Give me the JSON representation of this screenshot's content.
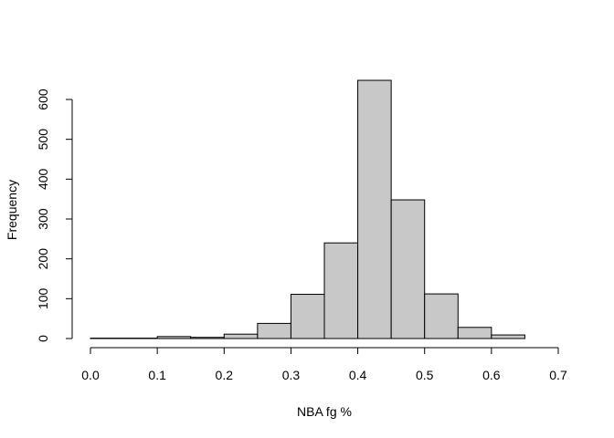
{
  "chart_data": {
    "type": "bar",
    "subtype": "histogram",
    "xlabel": "NBA fg %",
    "ylabel": "Frequency",
    "bin_edges": [
      0.0,
      0.05,
      0.1,
      0.15,
      0.2,
      0.25,
      0.3,
      0.35,
      0.4,
      0.45,
      0.5,
      0.55,
      0.6,
      0.65
    ],
    "values": [
      1,
      1,
      5,
      3,
      11,
      38,
      111,
      240,
      648,
      348,
      112,
      28,
      9
    ],
    "xlim": [
      0.0,
      0.7
    ],
    "ylim": [
      0,
      650
    ],
    "x_ticks": [
      "0.0",
      "0.1",
      "0.2",
      "0.3",
      "0.4",
      "0.5",
      "0.6",
      "0.7"
    ],
    "y_ticks": [
      "0",
      "100",
      "200",
      "300",
      "400",
      "500",
      "600"
    ],
    "bar_fill": "#c8c8c8",
    "grid": false
  }
}
